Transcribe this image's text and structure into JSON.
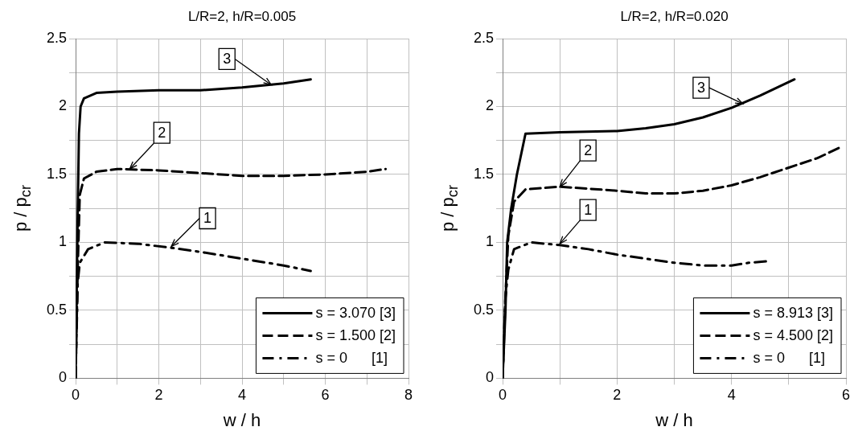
{
  "chart_data": [
    {
      "type": "line",
      "title": "L/R=2, h/R=0.005",
      "xlabel": "w / h",
      "ylabel": "p / p$_{cr}$",
      "xlim": [
        0,
        8
      ],
      "xticks": [
        0,
        {
          "value": 1,
          "label": null
        },
        2,
        {
          "value": 3,
          "label": null
        },
        4,
        {
          "value": 5,
          "label": null
        },
        6,
        {
          "value": 7,
          "label": null
        },
        8
      ],
      "ylim": [
        0,
        2.5
      ],
      "yticks": [
        0,
        {
          "value": 0.25,
          "label": null
        },
        0.5,
        {
          "value": 0.75,
          "label": null
        },
        1,
        {
          "value": 1.25,
          "label": null
        },
        1.5,
        {
          "value": 1.75,
          "label": null
        },
        2,
        {
          "value": 2.25,
          "label": null
        },
        2.5
      ],
      "grid": true,
      "legend": "bottom right",
      "marker": "none",
      "series": [
        {
          "name": "s = 3.070 [3]",
          "color": "#000000",
          "line_style": "solid",
          "x": [
            0,
            0.05,
            0.08,
            0.12,
            0.2,
            0.5,
            1,
            2,
            3,
            4,
            5,
            5.65
          ],
          "values": [
            0,
            1.2,
            1.8,
            2.0,
            2.06,
            2.1,
            2.11,
            2.12,
            2.12,
            2.14,
            2.17,
            2.2
          ]
        },
        {
          "name": "s = 1.500 [2]",
          "color": "#000000",
          "line_style": "dashed",
          "x": [
            0,
            0.05,
            0.1,
            0.2,
            0.5,
            1,
            2,
            3,
            4,
            5,
            6,
            7,
            7.45
          ],
          "values": [
            0,
            0.8,
            1.35,
            1.47,
            1.52,
            1.54,
            1.53,
            1.51,
            1.49,
            1.49,
            1.5,
            1.52,
            1.54
          ]
        },
        {
          "name": "s = 0      [1]",
          "color": "#000000",
          "line_style": "dashdot",
          "x": [
            0,
            0.05,
            0.1,
            0.3,
            0.7,
            1.5,
            2.3,
            3,
            4,
            5,
            5.65
          ],
          "values": [
            0,
            0.7,
            0.85,
            0.95,
            1.0,
            0.99,
            0.96,
            0.93,
            0.88,
            0.83,
            0.79
          ]
        }
      ],
      "annotations": [
        {
          "text": "3",
          "x": 4.7,
          "y": 2.16
        },
        {
          "text": "2",
          "x": 1.3,
          "y": 1.54
        },
        {
          "text": "1",
          "x": 2.3,
          "y": 0.97
        }
      ]
    },
    {
      "type": "line",
      "title": "L/R=2, h/R=0.020",
      "xlabel": "w / h",
      "ylabel": "p / p$_{cr}$",
      "xlim": [
        0,
        6
      ],
      "xticks": [
        0,
        {
          "value": 1,
          "label": null
        },
        2,
        {
          "value": 3,
          "label": null
        },
        4,
        {
          "value": 5,
          "label": null
        },
        6
      ],
      "ylim": [
        0,
        2.5
      ],
      "yticks": [
        0,
        {
          "value": 0.25,
          "label": null
        },
        0.5,
        {
          "value": 0.75,
          "label": null
        },
        1,
        {
          "value": 1.25,
          "label": null
        },
        1.5,
        {
          "value": 1.75,
          "label": null
        },
        2,
        {
          "value": 2.25,
          "label": null
        },
        2.5
      ],
      "grid": true,
      "legend": "bottom right",
      "marker": "none",
      "series": [
        {
          "name": "s = 8.913 [3]",
          "color": "#000000",
          "line_style": "solid",
          "x": [
            0,
            0.05,
            0.08,
            0.15,
            0.25,
            0.4,
            1,
            2,
            2.5,
            3,
            3.5,
            4,
            4.5,
            5.1
          ],
          "values": [
            0,
            0.5,
            1.0,
            1.25,
            1.5,
            1.8,
            1.81,
            1.82,
            1.84,
            1.87,
            1.92,
            1.99,
            2.08,
            2.2
          ]
        },
        {
          "name": "s = 4.500 [2]",
          "color": "#000000",
          "line_style": "dashed",
          "x": [
            0,
            0.05,
            0.1,
            0.2,
            0.4,
            1,
            2,
            2.5,
            3,
            3.5,
            4,
            4.5,
            5,
            5.5,
            5.9
          ],
          "values": [
            0,
            0.6,
            1.05,
            1.3,
            1.39,
            1.41,
            1.38,
            1.36,
            1.36,
            1.38,
            1.42,
            1.48,
            1.55,
            1.62,
            1.7
          ]
        },
        {
          "name": "s = 0      [1]",
          "color": "#000000",
          "line_style": "dashdot",
          "x": [
            0,
            0.05,
            0.1,
            0.2,
            0.5,
            1,
            1.5,
            2,
            2.5,
            3,
            3.5,
            4,
            4.3,
            4.6
          ],
          "values": [
            0,
            0.6,
            0.8,
            0.95,
            1.0,
            0.98,
            0.95,
            0.91,
            0.88,
            0.85,
            0.83,
            0.83,
            0.85,
            0.86
          ]
        }
      ],
      "annotations": [
        {
          "text": "3",
          "x": 4.2,
          "y": 2.02
        },
        {
          "text": "2",
          "x": 1.0,
          "y": 1.41
        },
        {
          "text": "1",
          "x": 1.0,
          "y": 0.99
        }
      ]
    }
  ]
}
